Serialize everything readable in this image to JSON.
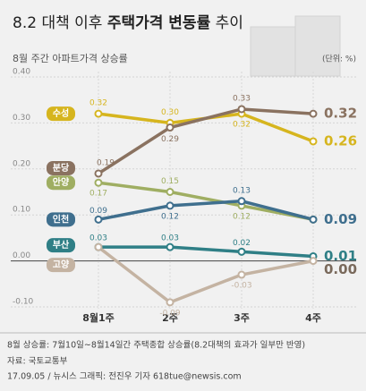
{
  "chart_data": {
    "type": "line",
    "title": [
      "8.2 대책 이후 ",
      "주택가격 변동률",
      " 추이"
    ],
    "subtitle": "8월 주간 아파트가격 상승률",
    "unit": "(단위: %)",
    "categories": [
      "8월1주",
      "2주",
      "3주",
      "4주"
    ],
    "ylim": [
      -0.12,
      0.42
    ],
    "yticks": [
      {
        "value": 0.4,
        "label": "0.40"
      },
      {
        "value": 0.3,
        "label": "0.30"
      },
      {
        "value": 0.2,
        "label": "0.20"
      },
      {
        "value": 0.1,
        "label": "0.10"
      },
      {
        "value": 0,
        "label": "0.00"
      },
      {
        "value": -0.1,
        "label": "-0.10"
      }
    ],
    "grid": true,
    "series": [
      {
        "name": "수성",
        "color": "#d6b51e",
        "values": [
          0.32,
          0.3,
          0.32,
          0.26
        ],
        "value_labels": [
          "0.32",
          "0.30",
          "0.32",
          "0.26"
        ]
      },
      {
        "name": "분당",
        "color": "#8a7260",
        "values": [
          0.19,
          0.29,
          0.33,
          0.32
        ],
        "value_labels": [
          "0.19",
          "0.29",
          "0.33",
          "0.32"
        ]
      },
      {
        "name": "안양",
        "color": "#9fae62",
        "values": [
          0.17,
          0.15,
          0.12,
          0.09
        ],
        "value_labels": [
          "0.17",
          "0.15",
          "0.12",
          null
        ]
      },
      {
        "name": "인천",
        "color": "#3f6f8e",
        "values": [
          0.09,
          0.12,
          0.13,
          0.09
        ],
        "value_labels": [
          "0.09",
          "0.12",
          "0.13",
          "0.09"
        ]
      },
      {
        "name": "부산",
        "color": "#2f7f86",
        "values": [
          0.03,
          0.03,
          0.02,
          0.01
        ],
        "value_labels": [
          "0.03",
          "0.03",
          "0.02",
          "0.01"
        ]
      },
      {
        "name": "고양",
        "color": "#c4b3a2",
        "values": [
          0.03,
          -0.09,
          -0.03,
          0.0
        ],
        "value_labels": [
          null,
          "-0.09",
          "-0.03",
          "0.00"
        ]
      }
    ],
    "footnote": "8월 상승률: 7월10일~8월14일간 주택종합 상승률(8.2대책의 효과가 일부만 반영)",
    "source": "자료: 국토교통부",
    "credit": "17.09.05 / 뉴시스 그래픽: 전진우 기자 618tue@newsis.com"
  }
}
